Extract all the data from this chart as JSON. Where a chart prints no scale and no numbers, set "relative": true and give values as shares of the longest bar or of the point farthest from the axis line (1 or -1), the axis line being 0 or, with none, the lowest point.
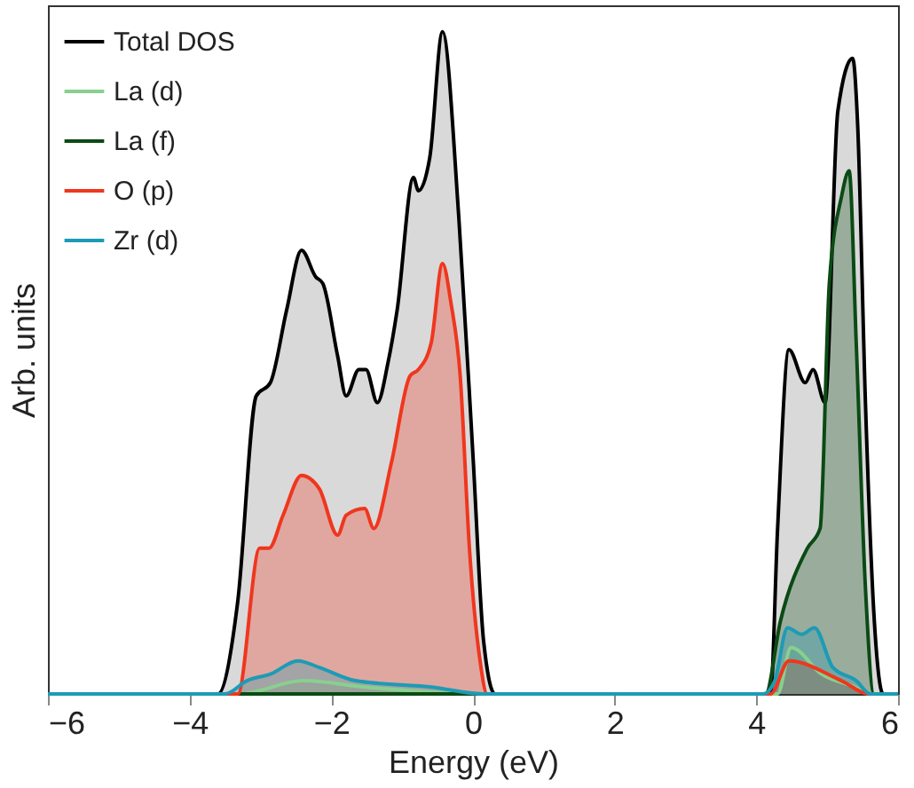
{
  "chart_data": {
    "type": "area",
    "relative": true,
    "xlabel": "Energy (eV)",
    "ylabel": "Arb. units",
    "xlim": [
      -6,
      6
    ],
    "xticks": [
      -6,
      -4,
      -2,
      0,
      2,
      4,
      6
    ],
    "grid": false,
    "legend": "top left",
    "marker": "none",
    "line_style": "solid",
    "series": [
      {
        "name": "Total DOS",
        "color": "#000000",
        "x": [
          -6,
          -3.6,
          -3.32,
          -3.06,
          -2.86,
          -2.63,
          -2.42,
          -2.22,
          -2.12,
          -1.91,
          -1.79,
          -1.61,
          -1.51,
          -1.35,
          -1.2,
          -1.07,
          -0.84,
          -0.77,
          -0.61,
          -0.43,
          -0.2,
          0,
          0.15,
          0.31,
          4.2,
          4.3,
          4.46,
          4.69,
          4.8,
          4.97,
          5.15,
          5.36,
          5.43,
          5.54,
          5.66,
          5.79,
          6
        ],
        "values": [
          0,
          0,
          0.14,
          0.45,
          0.47,
          0.58,
          0.67,
          0.63,
          0.62,
          0.51,
          0.45,
          0.49,
          0.49,
          0.44,
          0.5,
          0.58,
          0.78,
          0.76,
          0.81,
          1.0,
          0.72,
          0.36,
          0.08,
          0,
          0,
          0.25,
          0.52,
          0.47,
          0.49,
          0.44,
          0.88,
          0.96,
          0.86,
          0.44,
          0.12,
          0,
          0
        ]
      },
      {
        "name": "La (d)",
        "color": "#88d08f",
        "x": [
          -6,
          -3.3,
          -2.4,
          -1.5,
          0.1,
          4.3,
          4.49,
          4.92,
          5.4,
          5.6,
          6
        ],
        "values": [
          0,
          0,
          0.02,
          0.01,
          0,
          0,
          0.07,
          0.03,
          0.01,
          0,
          0
        ]
      },
      {
        "name": "La (f)",
        "color": "#0b4a14",
        "x": [
          -6,
          4.13,
          4.34,
          4.72,
          4.9,
          5.03,
          5.2,
          5.31,
          5.41,
          5.54,
          5.66,
          6
        ],
        "values": [
          0,
          0,
          0.11,
          0.22,
          0.25,
          0.62,
          0.75,
          0.79,
          0.53,
          0.16,
          0,
          0
        ]
      },
      {
        "name": "O (p)",
        "color": "#f0361e",
        "x": [
          -6,
          -3.32,
          -3.01,
          -2.88,
          -2.68,
          -2.42,
          -2.17,
          -1.91,
          -1.79,
          -1.53,
          -1.4,
          -1.15,
          -0.89,
          -0.77,
          -0.59,
          -0.43,
          -0.31,
          -0.18,
          -0.05,
          0.1,
          0.2,
          4.2,
          4.46,
          5.2,
          5.59,
          6
        ],
        "values": [
          0,
          0,
          0.22,
          0.22,
          0.27,
          0.33,
          0.31,
          0.24,
          0.27,
          0.28,
          0.25,
          0.35,
          0.48,
          0.49,
          0.53,
          0.65,
          0.59,
          0.48,
          0.22,
          0.05,
          0,
          0,
          0.05,
          0.02,
          0,
          0
        ]
      },
      {
        "name": "Zr (d)",
        "color": "#1d9bb5",
        "x": [
          -6,
          -3.5,
          -3.19,
          -2.86,
          -2.47,
          -2.17,
          -1.66,
          -0.56,
          0.13,
          4.1,
          4.26,
          4.44,
          4.64,
          4.82,
          5.08,
          5.41,
          5.61,
          6
        ],
        "values": [
          0,
          0,
          0.02,
          0.03,
          0.05,
          0.04,
          0.02,
          0.01,
          0,
          0,
          0.02,
          0.1,
          0.09,
          0.1,
          0.04,
          0.02,
          0,
          0
        ]
      }
    ]
  }
}
